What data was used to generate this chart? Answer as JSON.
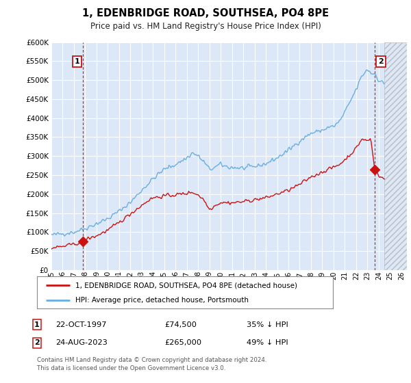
{
  "title": "1, EDENBRIDGE ROAD, SOUTHSEA, PO4 8PE",
  "subtitle": "Price paid vs. HM Land Registry's House Price Index (HPI)",
  "ylim": [
    0,
    600000
  ],
  "yticks": [
    0,
    50000,
    100000,
    150000,
    200000,
    250000,
    300000,
    350000,
    400000,
    450000,
    500000,
    550000,
    600000
  ],
  "ytick_labels": [
    "£0",
    "£50K",
    "£100K",
    "£150K",
    "£200K",
    "£250K",
    "£300K",
    "£350K",
    "£400K",
    "£450K",
    "£500K",
    "£550K",
    "£600K"
  ],
  "xlim_start": 1995.0,
  "xlim_end": 2026.5,
  "bg_color": "#dce8f7",
  "grid_color": "#ffffff",
  "hpi_color": "#6aaee0",
  "price_color": "#cc1111",
  "transaction1_date": "22-OCT-1997",
  "transaction1_price": 74500,
  "transaction1_hpi_pct": "35% ↓ HPI",
  "transaction1_x": 1997.81,
  "transaction2_date": "24-AUG-2023",
  "transaction2_price": 265000,
  "transaction2_hpi_pct": "49% ↓ HPI",
  "transaction2_x": 2023.65,
  "legend_label_red": "1, EDENBRIDGE ROAD, SOUTHSEA, PO4 8PE (detached house)",
  "legend_label_blue": "HPI: Average price, detached house, Portsmouth",
  "footer": "Contains HM Land Registry data © Crown copyright and database right 2024.\nThis data is licensed under the Open Government Licence v3.0.",
  "future_x_start": 2024.5
}
